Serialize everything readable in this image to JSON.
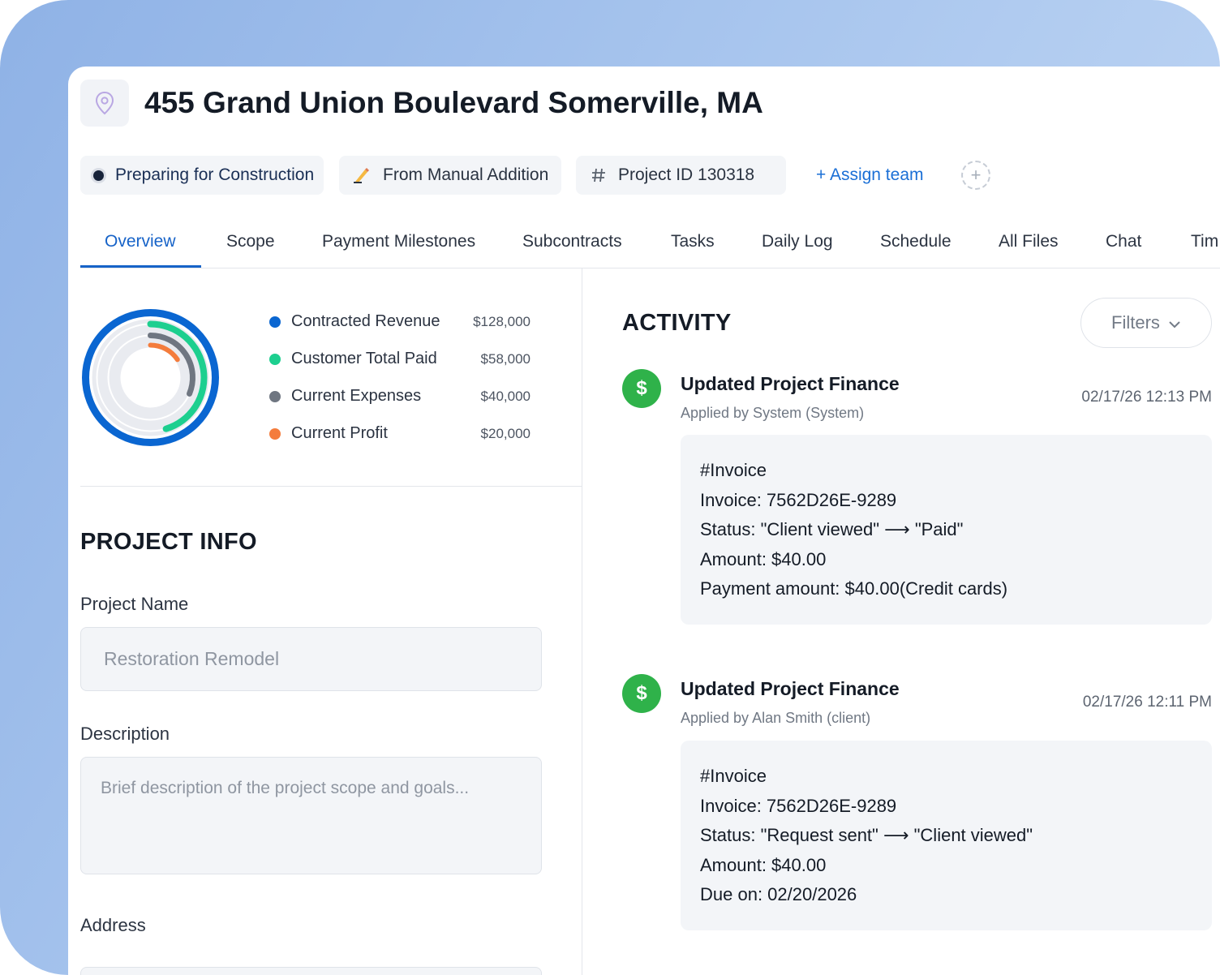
{
  "project": {
    "title": "455 Grand Union Boulevard Somerville, MA",
    "status": "Preparing for Construction",
    "source": "From Manual Addition",
    "project_id": "Project ID 130318",
    "assign_label": "+ Assign team",
    "add_label": "+"
  },
  "tabs": [
    "Overview",
    "Scope",
    "Payment Milestones",
    "Subcontracts",
    "Tasks",
    "Daily Log",
    "Schedule",
    "All Files",
    "Chat",
    "Tim"
  ],
  "finance": {
    "items": [
      {
        "label": "Contracted Revenue",
        "value": "$128,000",
        "amount": 128000,
        "color": "#0a66d1"
      },
      {
        "label": "Customer Total Paid",
        "value": "$58,000",
        "amount": 58000,
        "color": "#1dcf8f"
      },
      {
        "label": "Current Expenses",
        "value": "$40,000",
        "amount": 40000,
        "color": "#6f7681"
      },
      {
        "label": "Current Profit",
        "value": "$20,000",
        "amount": 20000,
        "color": "#f47c3c"
      }
    ]
  },
  "project_info": {
    "title": "PROJECT INFO",
    "name_label": "Project Name",
    "name_value": "Restoration Remodel",
    "description_label": "Description",
    "description_placeholder": "Brief description of the project scope and goals...",
    "address_label": "Address"
  },
  "activity": {
    "title": "ACTIVITY",
    "filters_label": "Filters",
    "entries": [
      {
        "title": "Updated Project Finance",
        "subtitle": "Applied by System (System)",
        "time": "02/17/26 12:13 PM",
        "lines": [
          "#Invoice",
          "Invoice: 7562D26E-9289",
          "Status: \"Client viewed\" ⟶ \"Paid\"",
          "Amount: $40.00",
          "Payment amount: $40.00(Credit cards)"
        ]
      },
      {
        "title": "Updated Project Finance",
        "subtitle": "Applied by Alan Smith (client)",
        "time": "02/17/26 12:11 PM",
        "lines": [
          "#Invoice",
          "Invoice: 7562D26E-9289",
          "Status: \"Request sent\" ⟶ \"Client viewed\"",
          "Amount: $40.00",
          "Due on: 02/20/2026"
        ]
      }
    ]
  }
}
